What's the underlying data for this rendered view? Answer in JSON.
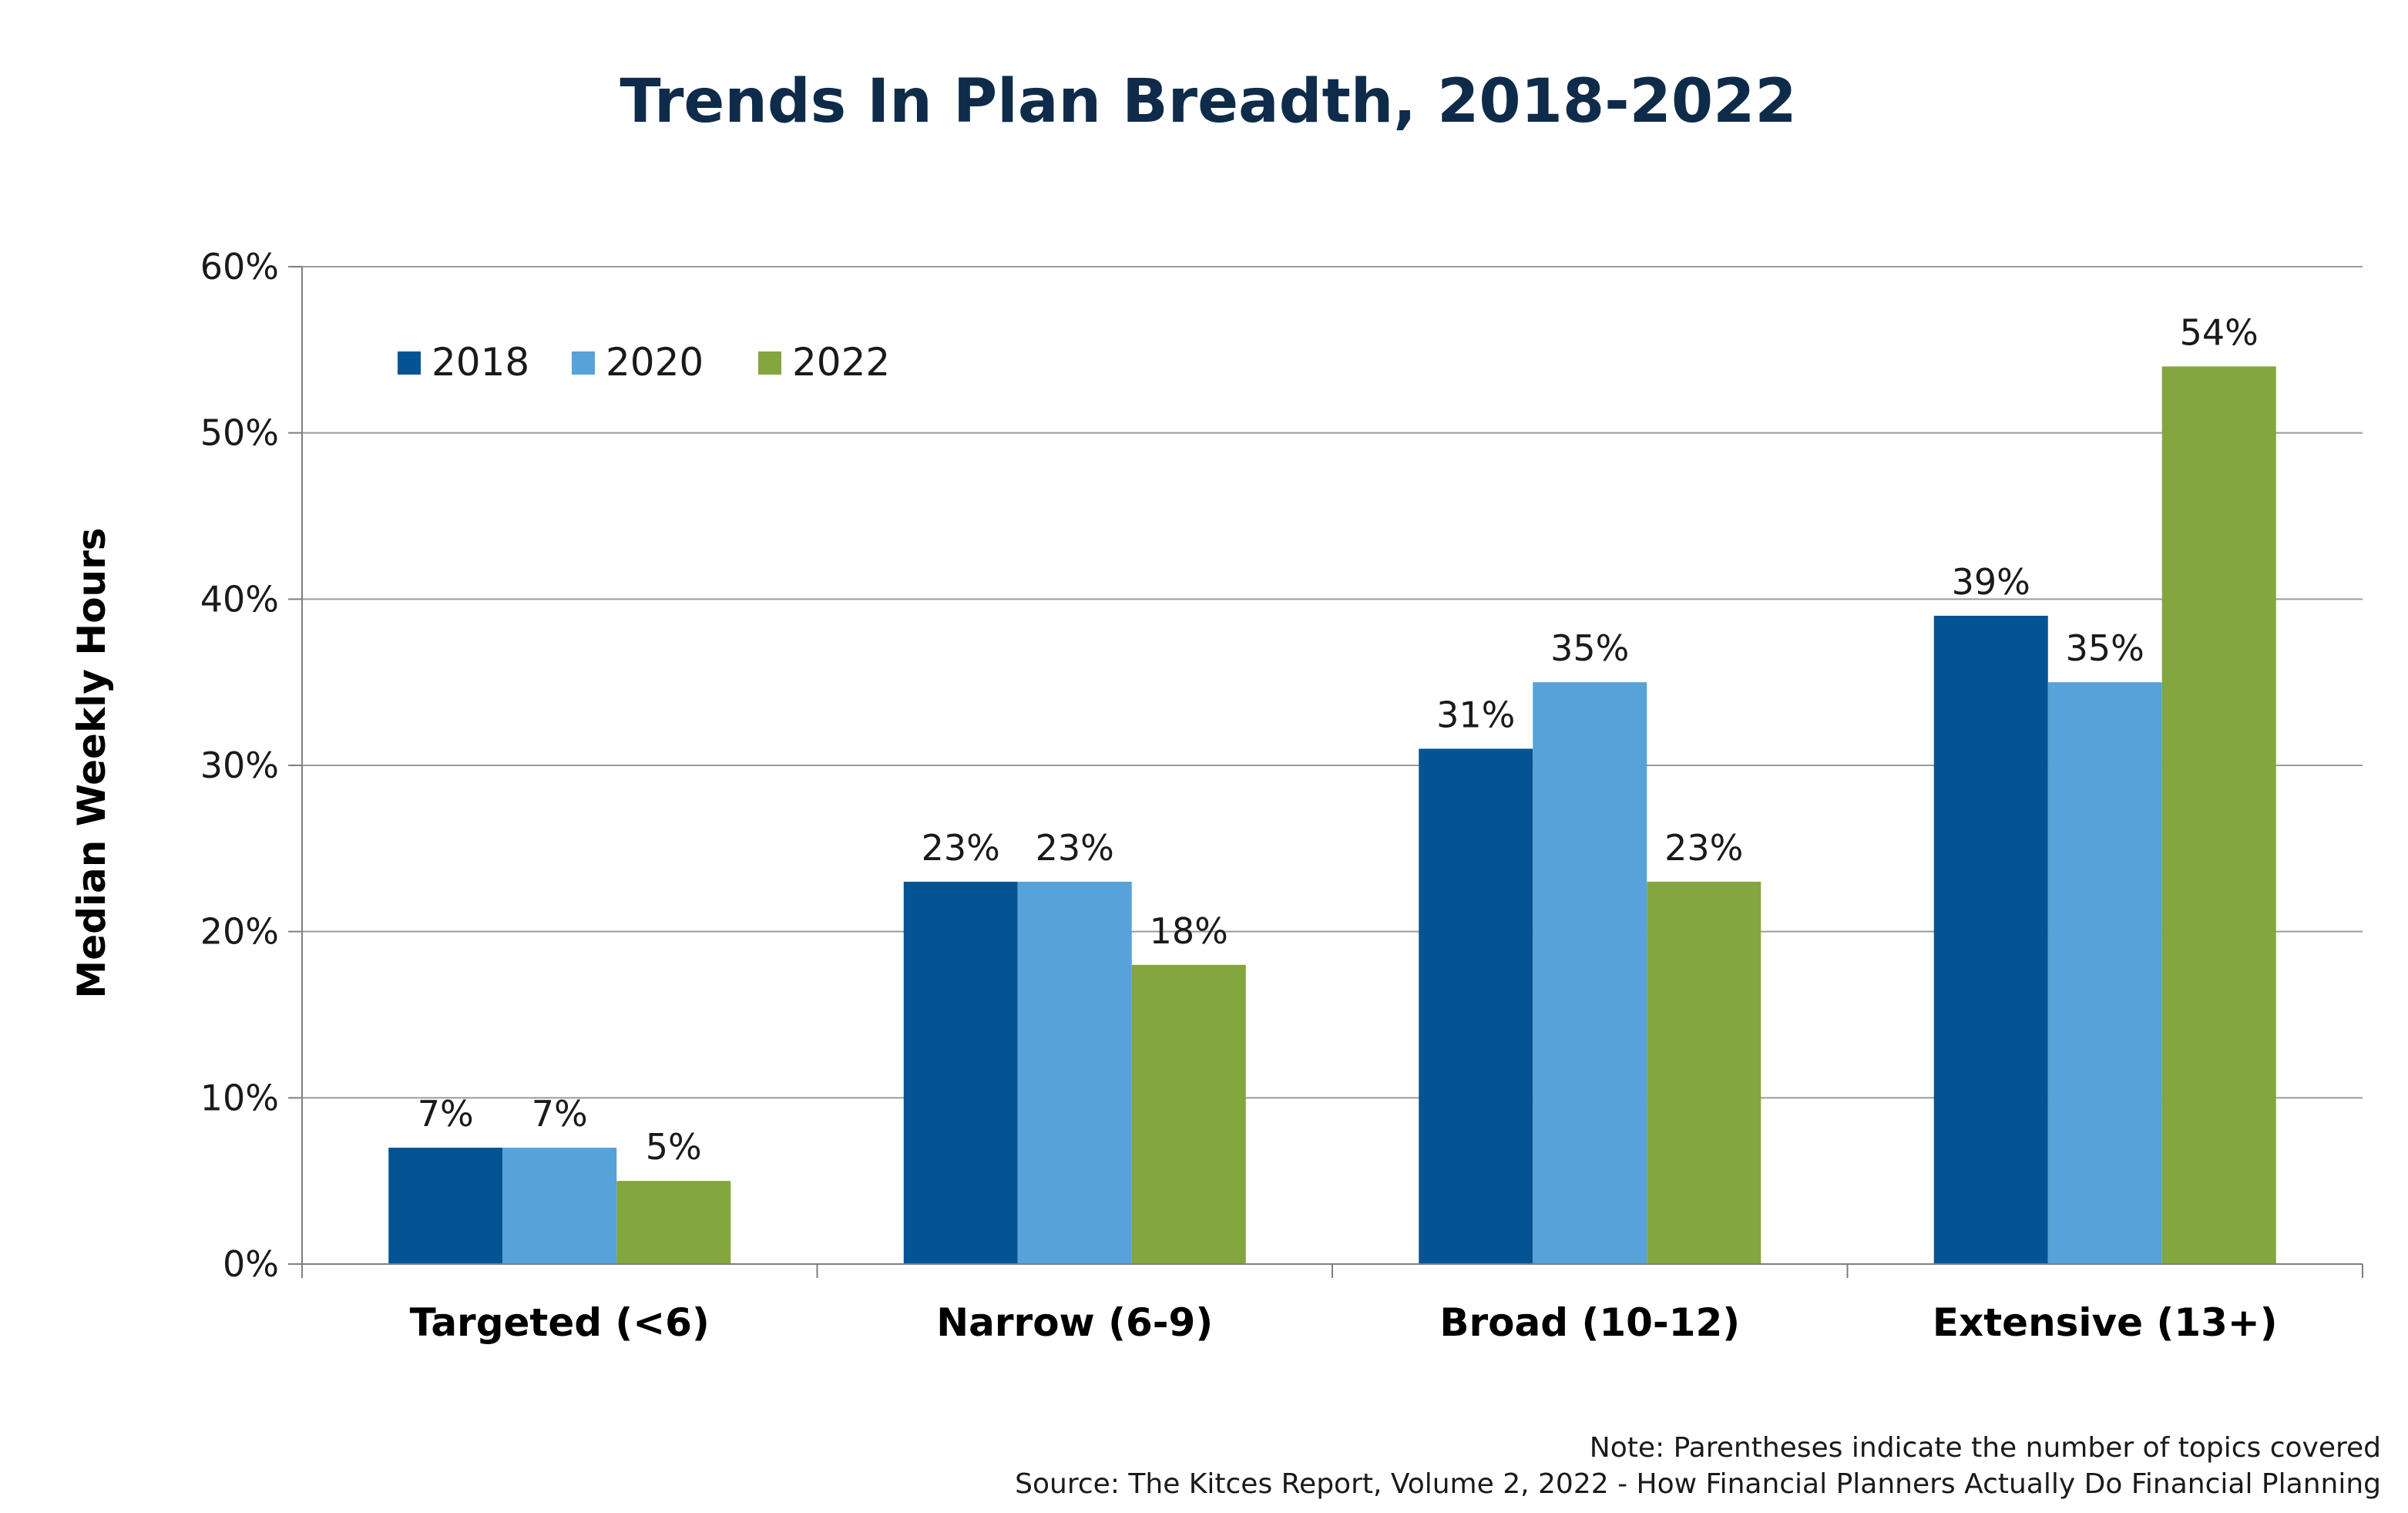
{
  "chart_data": {
    "type": "bar",
    "title": "Trends In Plan Breadth, 2018-2022",
    "ylabel": "Median Weekly Hours",
    "xlabel": "",
    "categories": [
      "Targeted (<6)",
      "Narrow (6-9)",
      "Broad (10-12)",
      "Extensive (13+)"
    ],
    "series": [
      {
        "name": "2018",
        "color": "#045494",
        "values": [
          7,
          23,
          31,
          39
        ],
        "labels": [
          "7%",
          "23%",
          "31%",
          "39%"
        ]
      },
      {
        "name": "2020",
        "color": "#57a2d8",
        "values": [
          7,
          23,
          35,
          35
        ],
        "labels": [
          "7%",
          "23%",
          "35%",
          "35%"
        ]
      },
      {
        "name": "2022",
        "color": "#83a63f",
        "values": [
          5,
          18,
          23,
          54
        ],
        "labels": [
          "5%",
          "18%",
          "23%",
          "54%"
        ]
      }
    ],
    "ylim": [
      0,
      60
    ],
    "yticks": [
      0,
      10,
      20,
      30,
      40,
      50,
      60
    ],
    "ytick_labels": [
      "0%",
      "10%",
      "20%",
      "30%",
      "40%",
      "50%",
      "60%"
    ],
    "grid": true,
    "legend_position": "top-left"
  },
  "notes": {
    "note": "Note: Parentheses indicate the number of topics covered",
    "source": "Source: The Kitces Report, Volume 2, 2022 - How Financial Planners Actually Do Financial Planning"
  }
}
